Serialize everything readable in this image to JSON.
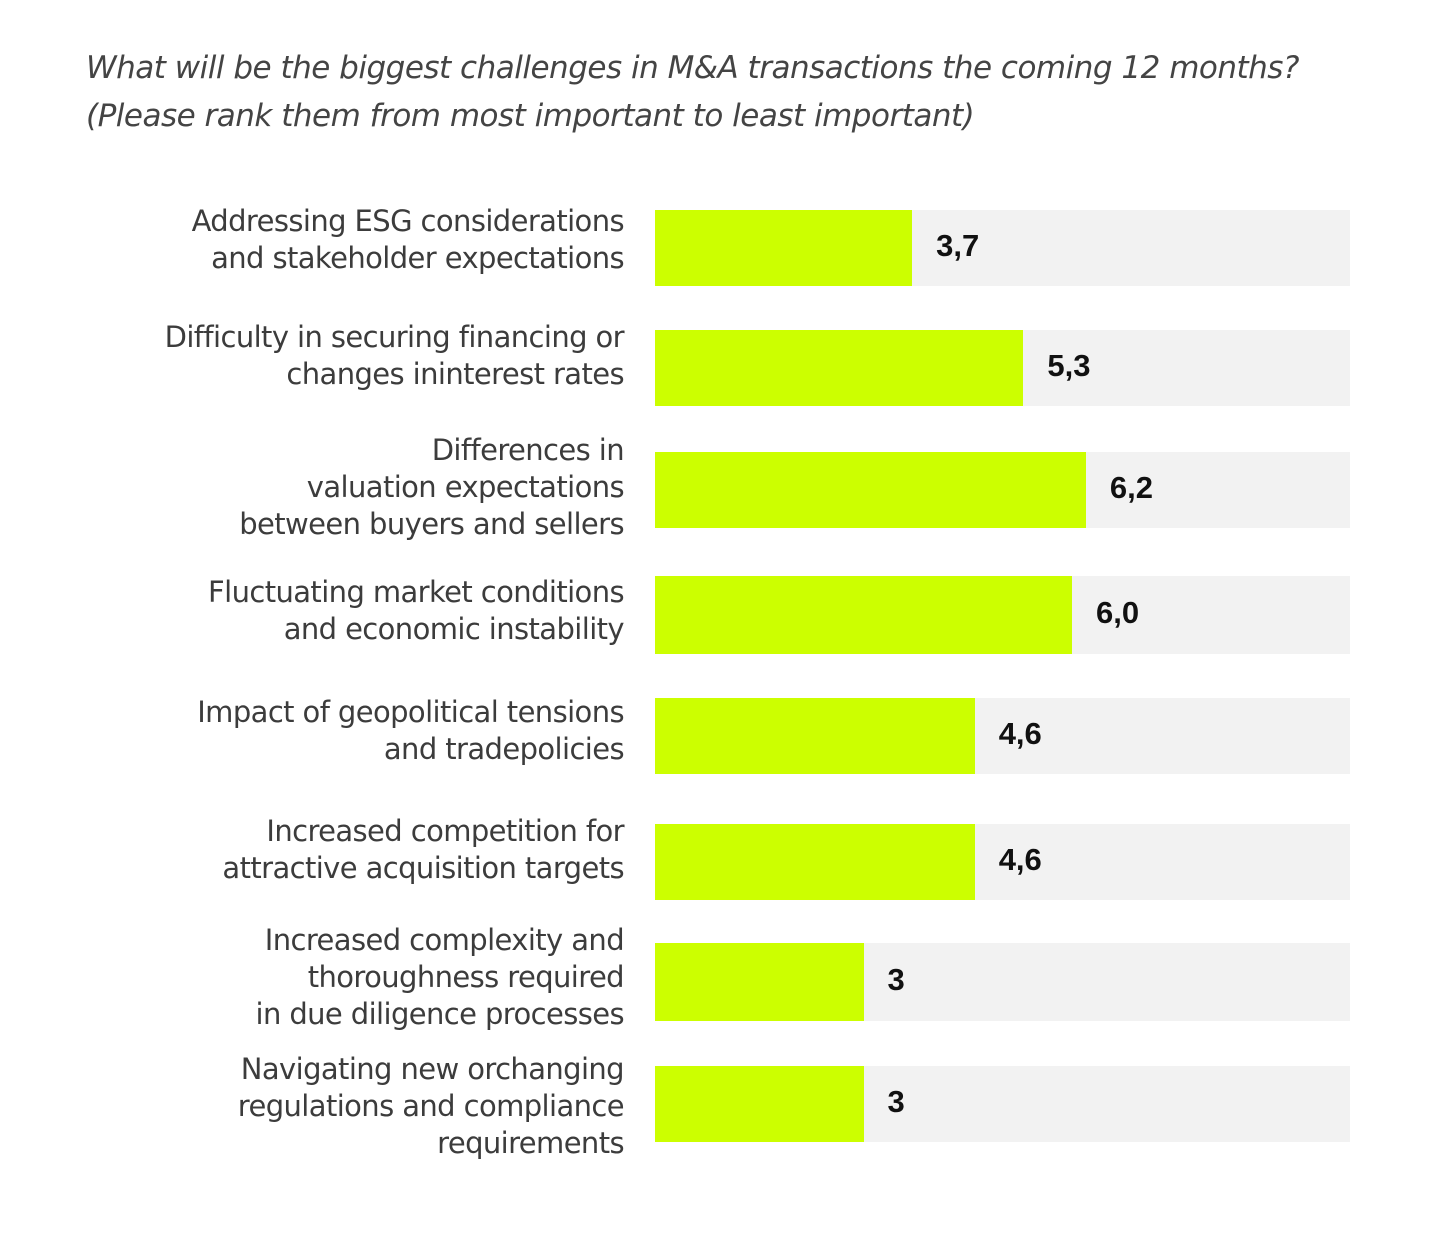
{
  "title_line1": "What will be the biggest challenges in M&A transactions the coming 12 months?",
  "title_line2": "(Please rank them from most important to least important)",
  "colors": {
    "bar": "#ccff00",
    "track": "#f2f2f2",
    "label": "#3c3c3c",
    "value": "#111111"
  },
  "chart_data": {
    "type": "bar",
    "orientation": "horizontal",
    "title": "What will be the biggest challenges in M&A transactions the coming 12 months? (Please rank them from most important to least important)",
    "xlabel": "",
    "ylabel": "",
    "xlim": [
      0,
      10
    ],
    "grid": false,
    "categories": [
      [
        "Addressing ESG considerations",
        "and stakeholder expectations"
      ],
      [
        "Difficulty in securing financing or",
        "changes ininterest rates"
      ],
      [
        "Differences in",
        "valuation expectations",
        "between buyers and sellers"
      ],
      [
        "Fluctuating market conditions",
        "and economic instability"
      ],
      [
        "Impact of geopolitical tensions",
        "and tradepolicies"
      ],
      [
        "Increased competition for",
        "attractive acquisition targets"
      ],
      [
        "Increased complexity and",
        "thoroughness required",
        "in due diligence processes"
      ],
      [
        "Navigating new orchanging",
        "regulations and compliance",
        "requirements"
      ]
    ],
    "values": [
      3.7,
      5.3,
      6.2,
      6.0,
      4.6,
      4.6,
      3.0,
      3.0
    ],
    "value_labels": [
      "3,7",
      "5,3",
      "6,2",
      "6,0",
      "4,6",
      "4,6",
      "3",
      "3"
    ]
  }
}
